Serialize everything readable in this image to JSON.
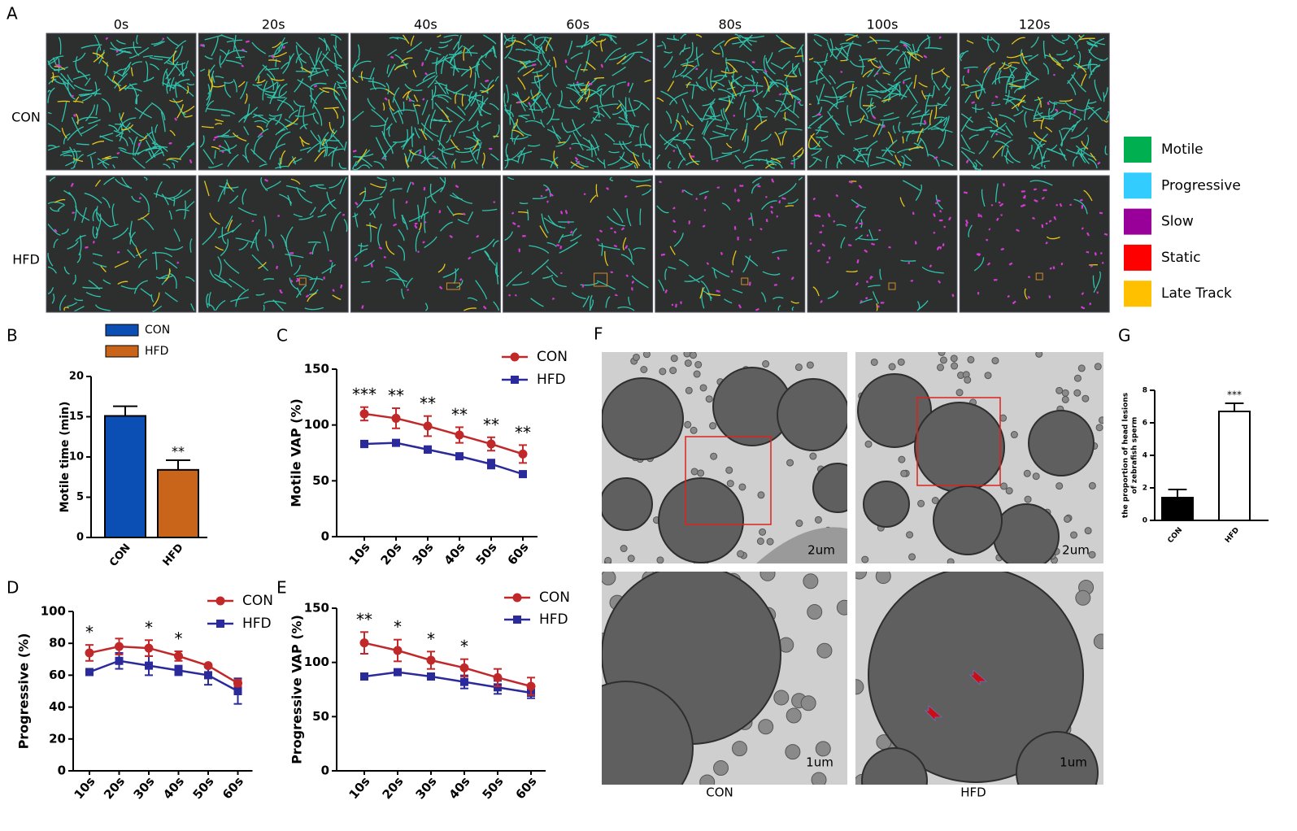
{
  "panel_labels": [
    "A",
    "B",
    "C",
    "D",
    "E",
    "F",
    "G"
  ],
  "panel_a": {
    "times": [
      "0s",
      "20s",
      "40s",
      "60s",
      "80s",
      "100s",
      "120s"
    ],
    "rows": [
      "CON",
      "HFD"
    ],
    "legend": [
      {
        "name": "Motile",
        "color": "#00b050"
      },
      {
        "name": "Progressive",
        "color": "#33ccff"
      },
      {
        "name": "Slow",
        "color": "#990099"
      },
      {
        "name": "Static",
        "color": "#ff0000"
      },
      {
        "name": "Late Track",
        "color": "#ffc000"
      }
    ]
  },
  "panel_f": {
    "scale_bars": [
      "2um",
      "2um",
      "1um",
      "1um"
    ],
    "groups": [
      "CON",
      "HFD"
    ]
  },
  "chart_data": [
    {
      "type": "bar",
      "categories": [
        "CON",
        "HFD"
      ],
      "values": [
        15.1,
        8.4
      ],
      "errors": [
        1.2,
        1.2
      ],
      "colors": [
        "#0b4fb5",
        "#c8651b"
      ],
      "ylabel": "Motile time (min)",
      "ylim": [
        0,
        20
      ],
      "yticks": [
        0,
        5,
        10,
        15,
        20
      ],
      "legend": true,
      "annotations": [
        null,
        "**"
      ]
    },
    {
      "type": "line",
      "categories": [
        "10s",
        "20s",
        "30s",
        "40s",
        "50s",
        "60s"
      ],
      "series": [
        {
          "name": "CON",
          "color": "#c0282a",
          "marker": "circle",
          "values": [
            110,
            106,
            99,
            91,
            83,
            74
          ],
          "errors": [
            6,
            9,
            9,
            7,
            6,
            8
          ]
        },
        {
          "name": "HFD",
          "color": "#2a2a9b",
          "marker": "square",
          "values": [
            83,
            84,
            78,
            72,
            65,
            56
          ],
          "errors": [
            3,
            2,
            3,
            2,
            4,
            2
          ]
        }
      ],
      "ylabel": "Motile VAP (%)",
      "ylim": [
        0,
        150
      ],
      "yticks": [
        0,
        50,
        100,
        150
      ],
      "annotations": [
        "***",
        "**",
        "**",
        "**",
        "**",
        "**"
      ]
    },
    {
      "type": "line",
      "categories": [
        "10s",
        "20s",
        "30s",
        "40s",
        "50s",
        "60s"
      ],
      "series": [
        {
          "name": "CON",
          "color": "#c0282a",
          "marker": "circle",
          "values": [
            74,
            78,
            77,
            72,
            66,
            55
          ],
          "errors": [
            5,
            5,
            5,
            3,
            1,
            2
          ]
        },
        {
          "name": "HFD",
          "color": "#2a2a9b",
          "marker": "square",
          "values": [
            62,
            69,
            66,
            63,
            60,
            50
          ],
          "errors": [
            2,
            5,
            6,
            3,
            6,
            8
          ]
        }
      ],
      "ylabel": "Progressive (%)",
      "ylim": [
        0,
        100
      ],
      "yticks": [
        0,
        20,
        40,
        60,
        80,
        100
      ],
      "annotations": [
        "*",
        null,
        "*",
        "*",
        null,
        null
      ]
    },
    {
      "type": "line",
      "categories": [
        "10s",
        "20s",
        "30s",
        "40s",
        "50s",
        "60s"
      ],
      "series": [
        {
          "name": "CON",
          "color": "#c0282a",
          "marker": "circle",
          "values": [
            118,
            111,
            102,
            95,
            86,
            78
          ],
          "errors": [
            10,
            10,
            8,
            8,
            8,
            8
          ]
        },
        {
          "name": "HFD",
          "color": "#2a2a9b",
          "marker": "square",
          "values": [
            87,
            91,
            87,
            82,
            77,
            72
          ],
          "errors": [
            2,
            2,
            3,
            6,
            6,
            5
          ]
        }
      ],
      "ylabel": "Progressive VAP (%)",
      "ylim": [
        0,
        150
      ],
      "yticks": [
        0,
        50,
        100,
        150
      ],
      "annotations": [
        "**",
        "*",
        "*",
        "*",
        null,
        null
      ]
    },
    {
      "type": "bar",
      "categories": [
        "CON",
        "HFD"
      ],
      "values": [
        1.4,
        6.7
      ],
      "errors": [
        0.5,
        0.5
      ],
      "colors": [
        "#000000",
        "#ffffff"
      ],
      "ylabel": [
        "the proportion of head lesions",
        "of zebrafish sperm"
      ],
      "ylim": [
        0,
        8
      ],
      "yticks": [
        0,
        2,
        4,
        6,
        8
      ],
      "legend": false,
      "annotations": [
        null,
        "***"
      ]
    }
  ]
}
